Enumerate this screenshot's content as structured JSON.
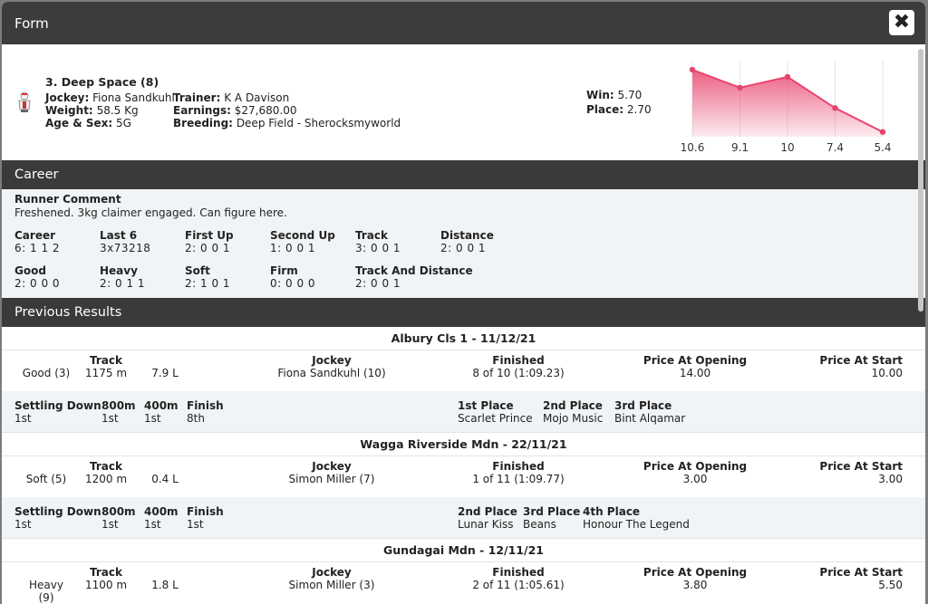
{
  "modal": {
    "title": "Form",
    "close_label": "✖"
  },
  "runner": {
    "name": "3. Deep Space (8)",
    "jockey_label": "Jockey:",
    "jockey": "Fiona Sandkuhl",
    "weight_label": "Weight:",
    "weight": "58.5 Kg",
    "age_label": "Age & Sex:",
    "age": "5G",
    "trainer_label": "Trainer:",
    "trainer": "K A Davison",
    "earnings_label": "Earnings:",
    "earnings": "$27,680.00",
    "breeding_label": "Breeding:",
    "breeding": "Deep Field - Sherocksmyworld",
    "win_label": "Win:",
    "win": "5.70",
    "place_label": "Place:",
    "place": "2.70"
  },
  "chart_data": {
    "type": "area",
    "categories": [
      "10.6",
      "9.1",
      "10",
      "7.4",
      "5.4"
    ],
    "values": [
      10.6,
      9.1,
      10,
      7.4,
      5.4
    ],
    "color": "#e8436d"
  },
  "career": {
    "heading": "Career",
    "comment_label": "Runner Comment",
    "comment": "Freshened. 3kg claimer engaged. Can figure here.",
    "stats_row1": [
      {
        "label": "Career",
        "value": "6: 1 1 2"
      },
      {
        "label": "Last 6",
        "value": "3x73218"
      },
      {
        "label": "First Up",
        "value": "2: 0 0 1"
      },
      {
        "label": "Second Up",
        "value": "1: 0 0 1"
      },
      {
        "label": "Track",
        "value": "3: 0 0 1"
      },
      {
        "label": "Distance",
        "value": "2: 0 0 1"
      }
    ],
    "stats_row2": [
      {
        "label": "Good",
        "value": "2: 0 0 0"
      },
      {
        "label": "Heavy",
        "value": "2: 0 1 1"
      },
      {
        "label": "Soft",
        "value": "2: 1 0 1"
      },
      {
        "label": "Firm",
        "value": "0: 0 0 0"
      },
      {
        "label": "Track And Distance",
        "value": "2: 0 0 1"
      }
    ]
  },
  "previous": {
    "heading": "Previous Results",
    "labels": {
      "track": "Track",
      "jockey": "Jockey",
      "finished": "Finished",
      "price_open": "Price At Opening",
      "price_start": "Price At Start",
      "settling": "Settling Down",
      "m800": "800m",
      "m400": "400m",
      "finish": "Finish"
    },
    "races": [
      {
        "title": "Albury Cls 1 - 11/12/21",
        "condition": "Good (3)",
        "track": "1175 m",
        "margin": "7.9 L",
        "jockey": "Fiona Sandkuhl (10)",
        "finished": "8 of 10 (1:09.23)",
        "price_open": "14.00",
        "price_start": "10.00",
        "settling": "1st",
        "m800": "1st",
        "m400": "1st",
        "finish": "8th",
        "places": [
          {
            "label": "1st Place",
            "value": "Scarlet Prince"
          },
          {
            "label": "2nd Place",
            "value": "Mojo Music"
          },
          {
            "label": "3rd Place",
            "value": "Bint Alqamar"
          }
        ]
      },
      {
        "title": "Wagga Riverside Mdn - 22/11/21",
        "condition": "Soft (5)",
        "track": "1200 m",
        "margin": "0.4 L",
        "jockey": "Simon Miller (7)",
        "finished": "1 of 11 (1:09.77)",
        "price_open": "3.00",
        "price_start": "3.00",
        "settling": "1st",
        "m800": "1st",
        "m400": "1st",
        "finish": "1st",
        "places": [
          {
            "label": "2nd Place",
            "value": "Lunar Kiss"
          },
          {
            "label": "3rd Place",
            "value": "Beans"
          },
          {
            "label": "4th Place",
            "value": "Honour The Legend"
          }
        ]
      },
      {
        "title": "Gundagai Mdn - 12/11/21",
        "condition": "Heavy (9)",
        "track": "1100 m",
        "margin": "1.8 L",
        "jockey": "Simon Miller (3)",
        "finished": "2 of 11 (1:05.61)",
        "price_open": "3.80",
        "price_start": "5.50"
      }
    ]
  }
}
